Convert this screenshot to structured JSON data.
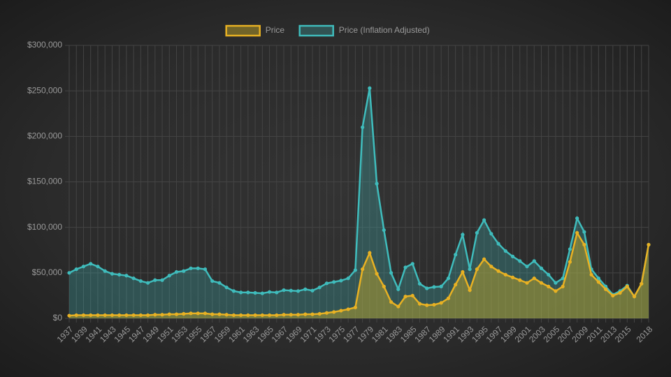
{
  "chart_data": {
    "type": "line",
    "categories": [
      "1937",
      null,
      "1939",
      null,
      "1941",
      null,
      "1943",
      null,
      "1945",
      null,
      "1947",
      null,
      "1949",
      null,
      "1951",
      null,
      "1953",
      null,
      "1955",
      null,
      "1957",
      null,
      "1959",
      null,
      "1961",
      null,
      "1963",
      null,
      "1965",
      null,
      "1967",
      null,
      "1969",
      null,
      "1971",
      null,
      "1973",
      null,
      "1975",
      null,
      "1977",
      null,
      "1979",
      null,
      "1981",
      null,
      "1983",
      null,
      "1985",
      null,
      "1987",
      null,
      "1989",
      null,
      "1991",
      null,
      "1993",
      null,
      "1995",
      null,
      "1997",
      null,
      "1999",
      null,
      "2001",
      null,
      "2003",
      null,
      "2005",
      null,
      "2007",
      null,
      "2009",
      null,
      "2011",
      null,
      "2013",
      null,
      "2015",
      null,
      null,
      "2018"
    ],
    "series": [
      {
        "name": "Price",
        "color": "#e8b123",
        "fill": "rgba(200,170,40,0.45)",
        "values": [
          3000,
          3500,
          3500,
          3500,
          3500,
          3500,
          3500,
          3500,
          3500,
          3500,
          3500,
          3500,
          4000,
          4000,
          4500,
          4500,
          5000,
          5500,
          5500,
          5500,
          4500,
          4500,
          4000,
          3500,
          3500,
          3500,
          3500,
          3500,
          3500,
          3500,
          4000,
          4000,
          4000,
          4500,
          4500,
          5000,
          6000,
          7000,
          8500,
          10000,
          12000,
          54000,
          72000,
          49000,
          35000,
          18000,
          13000,
          24000,
          25000,
          16000,
          14500,
          15000,
          17000,
          22000,
          37000,
          51000,
          31000,
          54000,
          65000,
          57000,
          52000,
          48000,
          45000,
          42000,
          39000,
          44000,
          39000,
          35000,
          30000,
          35000,
          62000,
          94000,
          81000,
          48000,
          40000,
          32000,
          25000,
          28000,
          35000,
          24000,
          38000,
          81000
        ]
      },
      {
        "name": "Price (Inflation Adjusted)",
        "color": "#3fbcbc",
        "fill": "rgba(63,188,188,0.28)",
        "values": [
          50000,
          54000,
          57000,
          60000,
          57000,
          52000,
          49000,
          48000,
          47000,
          44000,
          41000,
          39000,
          42000,
          42000,
          47000,
          51000,
          52000,
          55000,
          55000,
          54000,
          41000,
          39000,
          34000,
          30000,
          28500,
          28500,
          28000,
          27500,
          29000,
          28500,
          31000,
          30500,
          30000,
          32000,
          30500,
          34000,
          38500,
          40000,
          41500,
          44000,
          53000,
          210000,
          253000,
          148000,
          97000,
          50000,
          32000,
          56000,
          60000,
          38000,
          33000,
          34500,
          35000,
          44000,
          70000,
          92000,
          54000,
          94000,
          108000,
          93000,
          82000,
          74000,
          68000,
          63000,
          57000,
          63000,
          55000,
          48000,
          39000,
          44000,
          76000,
          110000,
          95000,
          54000,
          44000,
          35000,
          26000,
          30000,
          36000,
          24000,
          38000,
          81000
        ]
      }
    ],
    "ylim": [
      0,
      300000
    ],
    "yticks": [
      {
        "value": 0,
        "label": "$0"
      },
      {
        "value": 50000,
        "label": "$50,000"
      },
      {
        "value": 100000,
        "label": "$100,000"
      },
      {
        "value": 150000,
        "label": "$150,000"
      },
      {
        "value": 200000,
        "label": "$200,000"
      },
      {
        "value": 250000,
        "label": "$250,000"
      },
      {
        "value": 300000,
        "label": "$300,000"
      }
    ],
    "grid": true,
    "legend": "top"
  }
}
